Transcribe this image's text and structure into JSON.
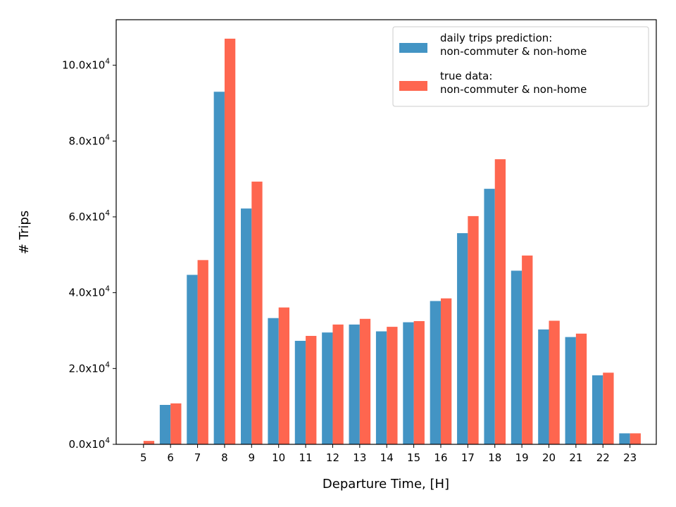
{
  "chart_data": {
    "type": "bar",
    "title": "",
    "xlabel": "Departure Time, [H]",
    "ylabel": "# Trips",
    "categories": [
      "5",
      "6",
      "7",
      "8",
      "9",
      "10",
      "11",
      "12",
      "13",
      "14",
      "15",
      "16",
      "17",
      "18",
      "19",
      "20",
      "21",
      "22",
      "23"
    ],
    "series": [
      {
        "name": "daily trips prediction:\nnon-commuter & non-home",
        "color": "#4394c4",
        "values": [
          0,
          10400,
          44700,
          93000,
          62200,
          33300,
          27300,
          29500,
          31600,
          29800,
          32200,
          37800,
          55700,
          67400,
          45800,
          30300,
          28300,
          18200,
          2900
        ]
      },
      {
        "name": "true data:\nnon-commuter & non-home",
        "color": "#fe664f",
        "values": [
          900,
          10800,
          48600,
          107000,
          69300,
          36100,
          28600,
          31600,
          33100,
          31000,
          32500,
          38500,
          60200,
          75200,
          49800,
          32600,
          29200,
          18900,
          2900
        ]
      }
    ],
    "ylim": [
      0,
      112000
    ],
    "yticks": [
      0,
      20000,
      40000,
      60000,
      80000,
      100000
    ],
    "ytick_labels": [
      {
        "mantissa": "0.0x10",
        "exp": "4"
      },
      {
        "mantissa": "2.0x10",
        "exp": "4"
      },
      {
        "mantissa": "4.0x10",
        "exp": "4"
      },
      {
        "mantissa": "6.0x10",
        "exp": "4"
      },
      {
        "mantissa": "8.0x10",
        "exp": "4"
      },
      {
        "mantissa": "10.0x10",
        "exp": "4"
      }
    ],
    "grid": false,
    "legend_position": "top-right"
  }
}
